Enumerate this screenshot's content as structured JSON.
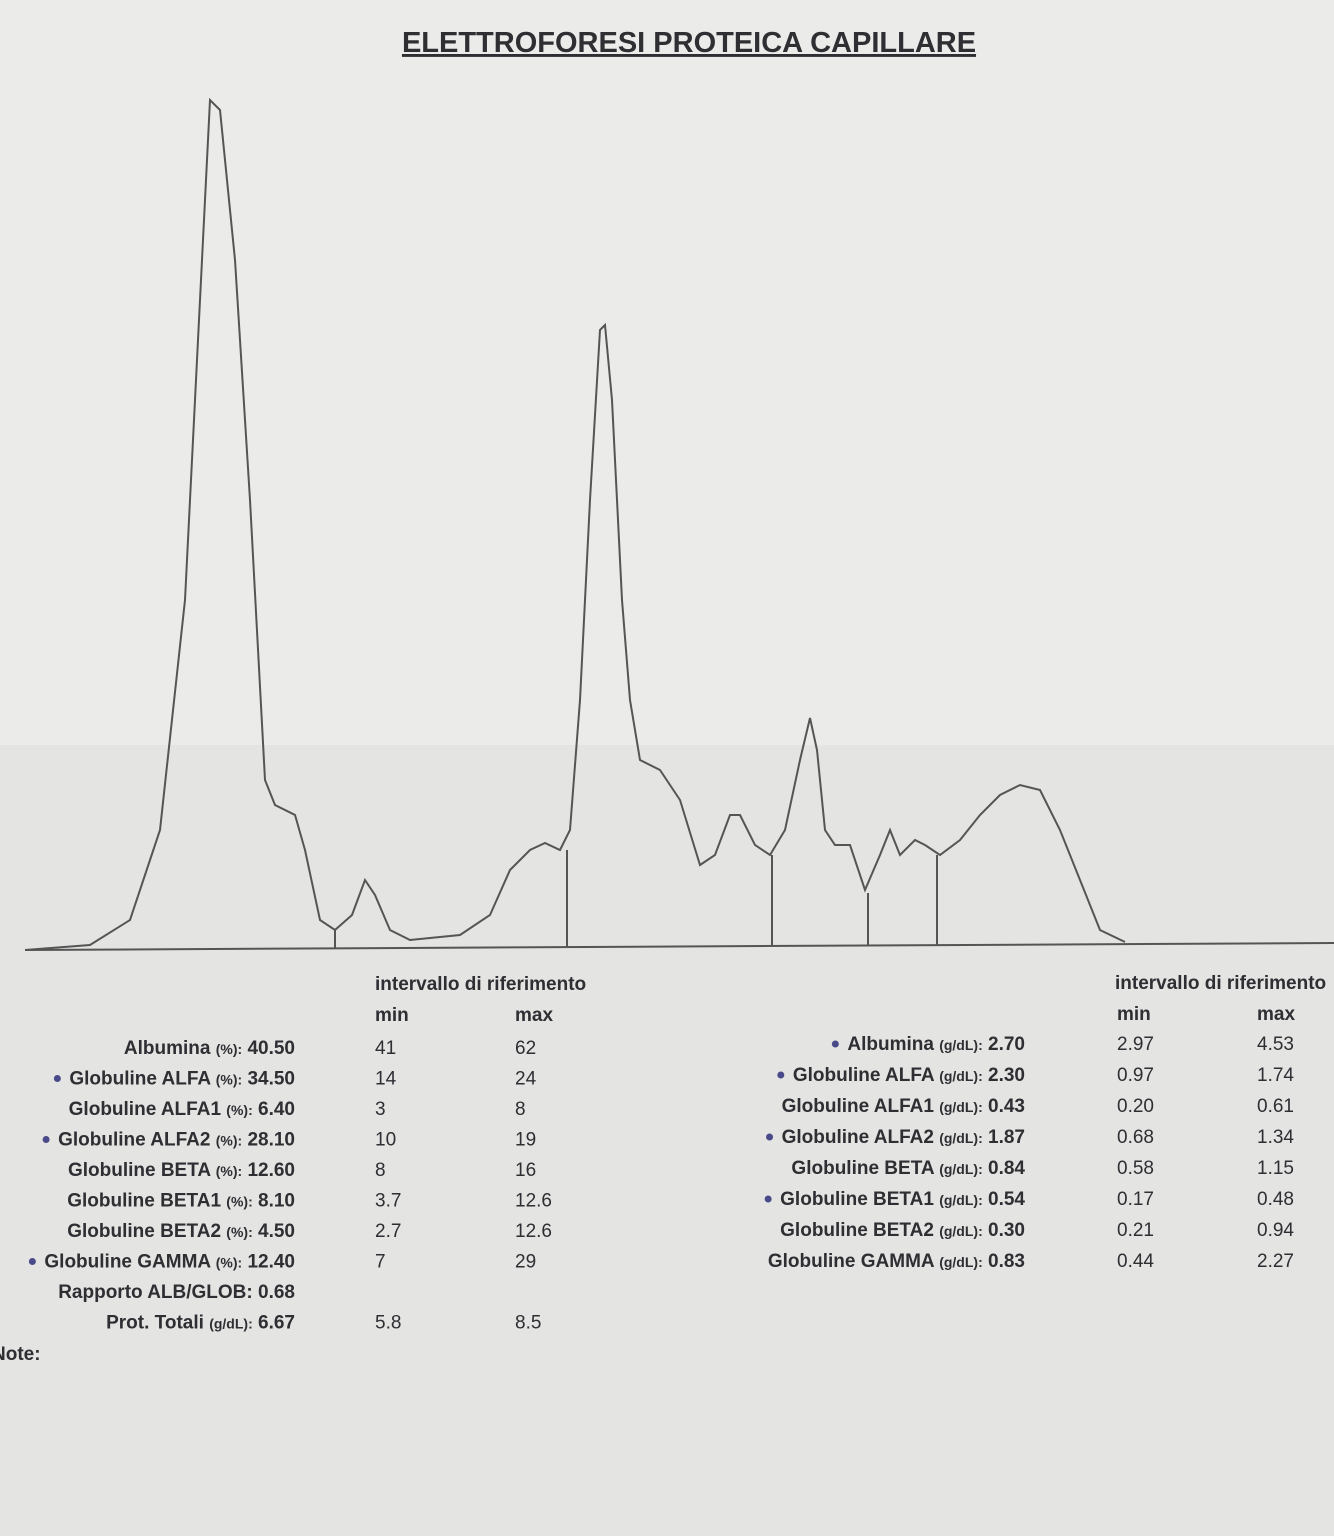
{
  "title": "ELETTROFORESI PROTEICA CAPILLARE",
  "left_table": {
    "header": "intervallo di riferimento",
    "min_header": "min",
    "max_header": "max",
    "rows": [
      {
        "label": "Albumina",
        "unit": "(%):",
        "value": "40.50",
        "min": "41",
        "max": "62",
        "flag": false
      },
      {
        "label": "Globuline ALFA",
        "unit": "(%):",
        "value": "34.50",
        "min": "14",
        "max": "24",
        "flag": true
      },
      {
        "label": "Globuline ALFA1",
        "unit": "(%):",
        "value": "6.40",
        "min": "3",
        "max": "8",
        "flag": false
      },
      {
        "label": "Globuline ALFA2",
        "unit": "(%):",
        "value": "28.10",
        "min": "10",
        "max": "19",
        "flag": true
      },
      {
        "label": "Globuline BETA",
        "unit": "(%):",
        "value": "12.60",
        "min": "8",
        "max": "16",
        "flag": false
      },
      {
        "label": "Globuline BETA1",
        "unit": "(%):",
        "value": "8.10",
        "min": "3.7",
        "max": "12.6",
        "flag": false
      },
      {
        "label": "Globuline BETA2",
        "unit": "(%):",
        "value": "4.50",
        "min": "2.7",
        "max": "12.6",
        "flag": false
      },
      {
        "label": "Globuline GAMMA",
        "unit": "(%):",
        "value": "12.40",
        "min": "7",
        "max": "29",
        "flag": true
      },
      {
        "label": "Rapporto ALB/GLOB:",
        "value": "0.68",
        "flag": false
      },
      {
        "label": "Prot. Totali",
        "unit": "(g/dL):",
        "value": "6.67",
        "min": "5.8",
        "max": "8.5",
        "flag": false
      }
    ],
    "note": "Note:"
  },
  "right_table": {
    "header": "intervallo di riferimento",
    "min_header": "min",
    "max_header": "max",
    "rows": [
      {
        "label": "Albumina",
        "unit": "(g/dL):",
        "value": "2.70",
        "min": "2.97",
        "max": "4.53",
        "flag": true
      },
      {
        "label": "Globuline ALFA",
        "unit": "(g/dL):",
        "value": "2.30",
        "min": "0.97",
        "max": "1.74",
        "flag": true
      },
      {
        "label": "Globuline ALFA1",
        "unit": "(g/dL):",
        "value": "0.43",
        "min": "0.20",
        "max": "0.61",
        "flag": false
      },
      {
        "label": "Globuline ALFA2",
        "unit": "(g/dL):",
        "value": "1.87",
        "min": "0.68",
        "max": "1.34",
        "flag": true
      },
      {
        "label": "Globuline BETA",
        "unit": "(g/dL):",
        "value": "0.84",
        "min": "0.58",
        "max": "1.15",
        "flag": false
      },
      {
        "label": "Globuline BETA1",
        "unit": "(g/dL):",
        "value": "0.54",
        "min": "0.17",
        "max": "0.48",
        "flag": true
      },
      {
        "label": "Globuline BETA2",
        "unit": "(g/dL):",
        "value": "0.30",
        "min": "0.21",
        "max": "0.94",
        "flag": false
      },
      {
        "label": "Globuline GAMMA",
        "unit": "(g/dL):",
        "value": "0.83",
        "min": "0.44",
        "max": "2.27",
        "flag": false
      }
    ]
  }
}
